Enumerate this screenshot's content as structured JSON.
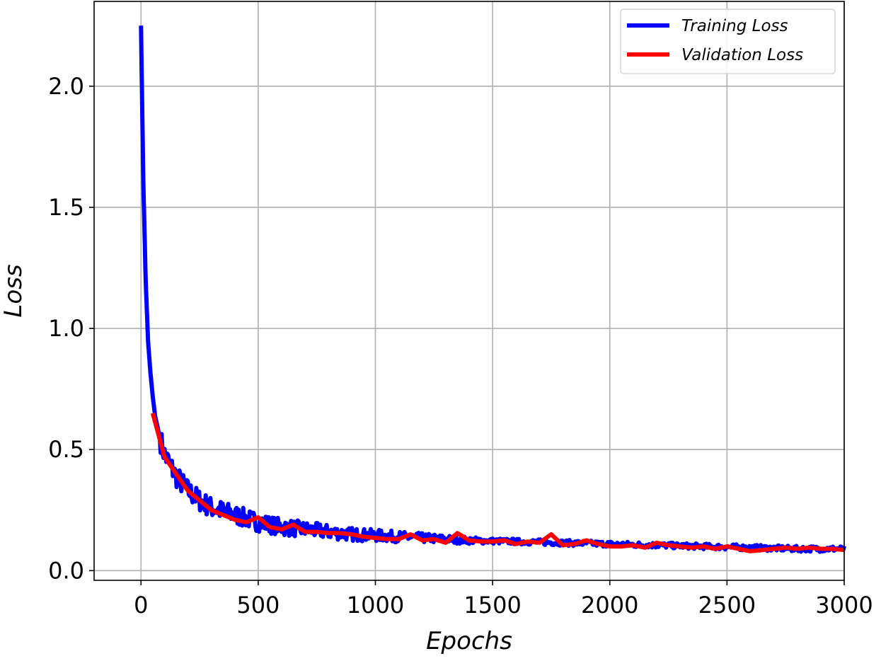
{
  "chart_data": {
    "type": "line",
    "title": "",
    "xlabel": "Epochs",
    "ylabel": "Loss",
    "xlim": [
      -200,
      3000
    ],
    "ylim": [
      -0.04,
      2.35
    ],
    "xticks": [
      0,
      500,
      1000,
      1500,
      2000,
      2500,
      3000
    ],
    "xtick_labels": [
      "0",
      "500",
      "1000",
      "1500",
      "2000",
      "2500",
      "3000"
    ],
    "yticks": [
      0.0,
      0.5,
      1.0,
      1.5,
      2.0
    ],
    "ytick_labels": [
      "0.0",
      "0.5",
      "1.0",
      "1.5",
      "2.0"
    ],
    "grid": true,
    "legend_position": "top-right",
    "series": [
      {
        "name": "Training Loss",
        "color": "#0000ff",
        "noisy": true,
        "x": [
          0,
          10,
          20,
          30,
          40,
          50,
          60,
          80,
          100,
          150,
          200,
          250,
          300,
          400,
          500,
          600,
          700,
          800,
          900,
          1000,
          1200,
          1400,
          1600,
          1800,
          2000,
          2200,
          2400,
          2600,
          2800,
          3000
        ],
        "y": [
          2.25,
          1.6,
          1.2,
          0.95,
          0.82,
          0.72,
          0.64,
          0.55,
          0.48,
          0.39,
          0.33,
          0.29,
          0.26,
          0.23,
          0.2,
          0.18,
          0.17,
          0.16,
          0.15,
          0.145,
          0.135,
          0.125,
          0.12,
          0.115,
          0.11,
          0.105,
          0.1,
          0.095,
          0.09,
          0.09
        ]
      },
      {
        "name": "Validation Loss",
        "color": "#ff0000",
        "noisy": false,
        "x": [
          50,
          100,
          150,
          200,
          250,
          300,
          350,
          400,
          450,
          500,
          550,
          600,
          650,
          700,
          750,
          800,
          850,
          900,
          950,
          1000,
          1050,
          1100,
          1150,
          1200,
          1250,
          1300,
          1350,
          1400,
          1450,
          1500,
          1550,
          1600,
          1650,
          1700,
          1750,
          1800,
          1850,
          1900,
          1950,
          2000,
          2050,
          2100,
          2150,
          2200,
          2250,
          2300,
          2350,
          2400,
          2450,
          2500,
          2550,
          2600,
          2650,
          2700,
          2750,
          2800,
          2850,
          2900,
          2950,
          3000
        ],
        "y": [
          0.65,
          0.47,
          0.4,
          0.33,
          0.29,
          0.25,
          0.23,
          0.21,
          0.2,
          0.22,
          0.18,
          0.17,
          0.19,
          0.16,
          0.16,
          0.155,
          0.155,
          0.15,
          0.14,
          0.135,
          0.13,
          0.13,
          0.15,
          0.125,
          0.13,
          0.115,
          0.155,
          0.125,
          0.12,
          0.12,
          0.125,
          0.11,
          0.12,
          0.115,
          0.15,
          0.105,
          0.11,
          0.125,
          0.11,
          0.1,
          0.1,
          0.105,
          0.095,
          0.115,
          0.105,
          0.1,
          0.095,
          0.1,
          0.09,
          0.1,
          0.09,
          0.08,
          0.085,
          0.09,
          0.095,
          0.09,
          0.095,
          0.09,
          0.09,
          0.085
        ]
      }
    ]
  }
}
